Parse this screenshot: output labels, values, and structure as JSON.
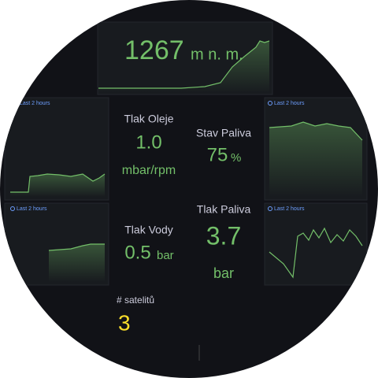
{
  "header": {
    "value": "1267",
    "unit": "m n. m."
  },
  "time_ranges": [
    "Last 2 hours",
    "Last 2 hours",
    "Last 2 hours",
    "Last 2 hours"
  ],
  "stats": [
    {
      "title": "Tlak Oleje",
      "value": "1.0",
      "unit": "mbar/rpm"
    },
    {
      "title": "Stav Paliva",
      "value": "75",
      "unit": "%"
    },
    {
      "title": "Tlak Vody",
      "value": "0.5",
      "unit": "bar"
    },
    {
      "title": "Tlak Paliva",
      "value": "3.7",
      "unit": "bar"
    },
    {
      "title": "# satelitů",
      "value": "3"
    }
  ]
}
